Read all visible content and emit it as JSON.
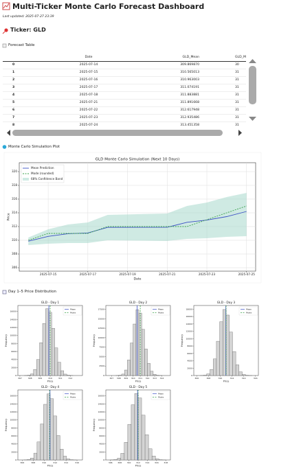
{
  "header": {
    "title": "Multi-Ticker Monte Carlo Forecast Dashboard",
    "updated": "Last updated: 2025-07-27 23:39",
    "ticker": "Ticker: GLD"
  },
  "sections": [
    "Forecast Table",
    "Monte Carlo Simulation Plot",
    "Day 1–5 Price Distribution"
  ],
  "table": {
    "columns": [
      "Date",
      "GLD_Mean",
      "GLD_M"
    ],
    "rows": [
      [
        "0",
        "2025-07-14",
        "309.869870",
        "30"
      ],
      [
        "1",
        "2025-07-15",
        "310.565013",
        "31"
      ],
      [
        "2",
        "2025-07-16",
        "310.963003",
        "31"
      ],
      [
        "3",
        "2025-07-17",
        "311.074191",
        "31"
      ],
      [
        "4",
        "2025-07-18",
        "311.883881",
        "31"
      ],
      [
        "5",
        "2025-07-21",
        "311.891668",
        "31"
      ],
      [
        "6",
        "2025-07-22",
        "312.617948",
        "31"
      ],
      [
        "7",
        "2025-07-23",
        "312.935486",
        "31"
      ],
      [
        "8",
        "2025-07-24",
        "313.451358",
        "31"
      ]
    ]
  },
  "chart_data": [
    {
      "type": "line",
      "title": "GLD Monte Carlo Simulation (Next 10 Days)",
      "x_label": "Date",
      "y_label": "Price",
      "x": [
        "2025-07-14",
        "2025-07-15",
        "2025-07-16",
        "2025-07-17",
        "2025-07-18",
        "2025-07-21",
        "2025-07-22",
        "2025-07-23",
        "2025-07-24",
        "2025-07-25"
      ],
      "xlim": [
        "2025-07-13T13:00:00Z",
        "2025-07-25T11:00:00Z"
      ],
      "xticks": [
        "2025-07-15",
        "2025-07-17",
        "2025-07-19",
        "2025-07-21",
        "2025-07-23",
        "2025-07-25"
      ],
      "ylim": [
        305.5,
        321.3
      ],
      "yticks": [
        306,
        308,
        310,
        312,
        314,
        316,
        318,
        320
      ],
      "grid": true,
      "legend": "upper left",
      "series": [
        {
          "name": "Mean Prediction",
          "color": "#3a4fc4",
          "style": "solid",
          "values": [
            309.87,
            310.57,
            310.96,
            311.07,
            311.88,
            311.89,
            312.62,
            312.94,
            313.45,
            314.2
          ]
        },
        {
          "name": "Mode (rounded)",
          "color": "#3aa04a",
          "style": "dashed",
          "values": [
            310,
            311,
            311,
            311,
            312,
            312,
            312,
            313,
            314,
            315
          ]
        },
        {
          "name": "68% Confidence Band",
          "color": "#9fd6c8",
          "style": "band",
          "lower": [
            309.3,
            309.5,
            309.6,
            309.6,
            310.0,
            309.9,
            310.2,
            310.3,
            310.5,
            310.6
          ],
          "upper": [
            310.4,
            311.6,
            312.3,
            312.6,
            313.7,
            313.9,
            315.0,
            315.5,
            316.3,
            316.9
          ]
        }
      ]
    },
    {
      "type": "histogram",
      "title": "GLD - Day 1",
      "x_label": "Price",
      "y_label": "Frequency",
      "color": "#d4d4d4",
      "bins": [
        307.45,
        307.75,
        308.05,
        308.35,
        308.65,
        308.95,
        309.25,
        309.55,
        309.85,
        310.15,
        310.45,
        310.75,
        311.05,
        311.35,
        311.65,
        311.95,
        312.25
      ],
      "counts": [
        20,
        90,
        400,
        1500,
        4000,
        8200,
        13000,
        16700,
        15800,
        11800,
        6900,
        3300,
        1200,
        350,
        80,
        15
      ],
      "xlim": [
        306.8,
        313.2
      ],
      "xticks": [
        307,
        308,
        309,
        310,
        311,
        312
      ],
      "ylim": [
        0,
        17500
      ],
      "yticks": [
        0,
        2000,
        4000,
        6000,
        8000,
        10000,
        12000,
        14000,
        16000
      ],
      "markers": [
        {
          "name": "Mean",
          "value": 309.87,
          "color": "#3a4fc4",
          "style": "solid"
        },
        {
          "name": "Mode",
          "value": 310,
          "color": "#3aa04a",
          "style": "dashed"
        }
      ]
    },
    {
      "type": "histogram",
      "title": "GLD - Day 2",
      "x_label": "Price",
      "y_label": "Frequency",
      "color": "#d4d4d4",
      "bins": [
        307.6,
        308.0,
        308.4,
        308.8,
        309.2,
        309.6,
        310.0,
        310.4,
        310.8,
        311.2,
        311.6,
        312.0,
        312.4,
        312.8,
        313.2,
        313.6,
        314.0
      ],
      "counts": [
        15,
        80,
        380,
        1450,
        4100,
        8600,
        13600,
        17400,
        16500,
        12200,
        7000,
        3200,
        1150,
        330,
        70,
        12
      ],
      "xlim": [
        306.2,
        315.2
      ],
      "xticks": [
        307,
        308,
        309,
        310,
        311,
        312,
        313,
        314
      ],
      "ylim": [
        0,
        18500
      ],
      "yticks": [
        0,
        2500,
        5000,
        7500,
        10000,
        12500,
        15000,
        17500
      ],
      "markers": [
        {
          "name": "Mean",
          "value": 310.57,
          "color": "#3a4fc4",
          "style": "solid"
        },
        {
          "name": "Mode",
          "value": 311,
          "color": "#3aa04a",
          "style": "dashed"
        }
      ]
    },
    {
      "type": "histogram",
      "title": "GLD - Day 3",
      "x_label": "Price",
      "y_label": "Frequency",
      "color": "#d4d4d4",
      "bins": [
        306.6,
        307.15,
        307.7,
        308.25,
        308.8,
        309.35,
        309.9,
        310.45,
        311.0,
        311.55,
        312.1,
        312.65,
        313.2,
        313.75,
        314.3,
        314.85,
        315.4
      ],
      "counts": [
        20,
        100,
        450,
        1650,
        4500,
        9300,
        14600,
        17900,
        16400,
        11800,
        6500,
        2900,
        1000,
        290,
        60,
        10
      ],
      "xlim": [
        305.5,
        316.5
      ],
      "xticks": [
        306,
        308,
        310,
        312,
        314,
        316
      ],
      "ylim": [
        0,
        19000
      ],
      "yticks": [
        0,
        2000,
        4000,
        6000,
        8000,
        10000,
        12000,
        14000,
        16000,
        18000
      ],
      "markers": [
        {
          "name": "Mean",
          "value": 310.96,
          "color": "#3a4fc4",
          "style": "solid"
        },
        {
          "name": "Mode",
          "value": 311,
          "color": "#3aa04a",
          "style": "dashed"
        }
      ]
    },
    {
      "type": "histogram",
      "title": "GLD - Day 4",
      "x_label": "Price",
      "y_label": "Frequency",
      "color": "#d4d4d4",
      "bins": [
        306.3,
        306.9,
        307.5,
        308.1,
        308.7,
        309.3,
        309.9,
        310.5,
        311.1,
        311.7,
        312.3,
        312.9,
        313.5,
        314.1,
        314.7,
        315.3,
        315.9
      ],
      "counts": [
        25,
        110,
        480,
        1700,
        4500,
        9000,
        13900,
        16500,
        15300,
        11000,
        6100,
        2700,
        950,
        270,
        60,
        10
      ],
      "xlim": [
        305.2,
        317
      ],
      "xticks": [
        306,
        308,
        310,
        312,
        314,
        316
      ],
      "ylim": [
        0,
        17500
      ],
      "yticks": [
        0,
        2000,
        4000,
        6000,
        8000,
        10000,
        12000,
        14000,
        16000
      ],
      "markers": [
        {
          "name": "Mean",
          "value": 311.07,
          "color": "#3a4fc4",
          "style": "solid"
        },
        {
          "name": "Mode",
          "value": 311,
          "color": "#3aa04a",
          "style": "dashed"
        }
      ]
    },
    {
      "type": "histogram",
      "title": "GLD - Day 5",
      "x_label": "Price",
      "y_label": "Frequency",
      "color": "#d4d4d4",
      "bins": [
        306.0,
        306.75,
        307.5,
        308.25,
        309.0,
        309.75,
        310.5,
        311.25,
        312.0,
        312.75,
        313.5,
        314.25,
        315.0,
        315.75,
        316.5,
        317.25,
        318.0
      ],
      "counts": [
        20,
        100,
        450,
        1650,
        4400,
        8900,
        13800,
        16600,
        15500,
        11200,
        6300,
        2800,
        980,
        280,
        60,
        10
      ],
      "xlim": [
        305,
        319
      ],
      "xticks": [
        306,
        308,
        310,
        312,
        314,
        316,
        318
      ],
      "ylim": [
        0,
        17500
      ],
      "yticks": [
        0,
        2000,
        4000,
        6000,
        8000,
        10000,
        12000,
        14000,
        16000
      ],
      "markers": [
        {
          "name": "Mean",
          "value": 311.88,
          "color": "#3a4fc4",
          "style": "solid"
        },
        {
          "name": "Mode",
          "value": 312,
          "color": "#3aa04a",
          "style": "dashed"
        }
      ]
    }
  ]
}
